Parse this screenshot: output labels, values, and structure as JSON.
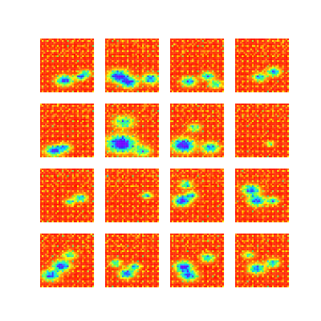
{
  "chart_data": {
    "type": "heatmap",
    "colormap": "rainbow",
    "colormap_stops": [
      "#6a00ff",
      "#2040ff",
      "#00e0ff",
      "#40ff60",
      "#ffff00",
      "#ff8000",
      "#ff0000"
    ],
    "grid": false,
    "axes_visible": false,
    "rows": 4,
    "columns": 4,
    "resolution": 32,
    "panels": [
      {
        "index": 0,
        "texture_seed": 11,
        "blobs": [
          {
            "cx": 0.45,
            "cy": 0.78,
            "r": 0.1,
            "s": 0.9
          },
          {
            "cx": 0.75,
            "cy": 0.72,
            "r": 0.06,
            "s": 0.8
          },
          {
            "cx": 0.85,
            "cy": 0.65,
            "r": 0.07,
            "s": 0.6
          }
        ]
      },
      {
        "index": 1,
        "texture_seed": 23,
        "blobs": [
          {
            "cx": 0.25,
            "cy": 0.7,
            "r": 0.12,
            "s": 1.0
          },
          {
            "cx": 0.45,
            "cy": 0.82,
            "r": 0.1,
            "s": 0.9
          },
          {
            "cx": 0.85,
            "cy": 0.75,
            "r": 0.1,
            "s": 0.8
          }
        ]
      },
      {
        "index": 2,
        "texture_seed": 37,
        "blobs": [
          {
            "cx": 0.35,
            "cy": 0.8,
            "r": 0.09,
            "s": 0.8
          },
          {
            "cx": 0.7,
            "cy": 0.7,
            "r": 0.08,
            "s": 0.7
          },
          {
            "cx": 0.85,
            "cy": 0.85,
            "r": 0.08,
            "s": 0.6
          }
        ]
      },
      {
        "index": 3,
        "texture_seed": 41,
        "blobs": [
          {
            "cx": 0.45,
            "cy": 0.72,
            "r": 0.08,
            "s": 0.7
          },
          {
            "cx": 0.72,
            "cy": 0.62,
            "r": 0.08,
            "s": 0.8
          }
        ]
      },
      {
        "index": 4,
        "texture_seed": 53,
        "blobs": [
          {
            "cx": 0.25,
            "cy": 0.88,
            "r": 0.1,
            "s": 0.9
          },
          {
            "cx": 0.45,
            "cy": 0.82,
            "r": 0.08,
            "s": 0.7
          }
        ]
      },
      {
        "index": 5,
        "texture_seed": 67,
        "blobs": [
          {
            "cx": 0.3,
            "cy": 0.75,
            "r": 0.16,
            "s": 1.2
          },
          {
            "cx": 0.35,
            "cy": 0.35,
            "r": 0.12,
            "s": 0.6
          },
          {
            "cx": 0.7,
            "cy": 0.88,
            "r": 0.1,
            "s": 0.6
          }
        ]
      },
      {
        "index": 6,
        "texture_seed": 79,
        "blobs": [
          {
            "cx": 0.25,
            "cy": 0.78,
            "r": 0.13,
            "s": 1.1
          },
          {
            "cx": 0.75,
            "cy": 0.82,
            "r": 0.1,
            "s": 0.8
          },
          {
            "cx": 0.45,
            "cy": 0.45,
            "r": 0.08,
            "s": 0.5
          }
        ]
      },
      {
        "index": 7,
        "texture_seed": 83,
        "blobs": [
          {
            "cx": 0.65,
            "cy": 0.75,
            "r": 0.05,
            "s": 0.5
          }
        ]
      },
      {
        "index": 8,
        "texture_seed": 97,
        "blobs": [
          {
            "cx": 0.75,
            "cy": 0.55,
            "r": 0.08,
            "s": 0.7
          },
          {
            "cx": 0.55,
            "cy": 0.62,
            "r": 0.06,
            "s": 0.6
          }
        ]
      },
      {
        "index": 9,
        "texture_seed": 101,
        "blobs": [
          {
            "cx": 0.78,
            "cy": 0.5,
            "r": 0.06,
            "s": 0.7
          }
        ]
      },
      {
        "index": 10,
        "texture_seed": 113,
        "blobs": [
          {
            "cx": 0.22,
            "cy": 0.6,
            "r": 0.1,
            "s": 1.0
          },
          {
            "cx": 0.4,
            "cy": 0.5,
            "r": 0.07,
            "s": 0.7
          },
          {
            "cx": 0.3,
            "cy": 0.3,
            "r": 0.08,
            "s": 0.6
          }
        ]
      },
      {
        "index": 11,
        "texture_seed": 127,
        "blobs": [
          {
            "cx": 0.3,
            "cy": 0.4,
            "r": 0.1,
            "s": 0.9
          },
          {
            "cx": 0.4,
            "cy": 0.6,
            "r": 0.1,
            "s": 0.9
          },
          {
            "cx": 0.7,
            "cy": 0.6,
            "r": 0.07,
            "s": 0.7
          }
        ]
      },
      {
        "index": 12,
        "texture_seed": 131,
        "blobs": [
          {
            "cx": 0.4,
            "cy": 0.6,
            "r": 0.1,
            "s": 1.0
          },
          {
            "cx": 0.2,
            "cy": 0.78,
            "r": 0.1,
            "s": 0.9
          },
          {
            "cx": 0.55,
            "cy": 0.4,
            "r": 0.08,
            "s": 0.6
          }
        ]
      },
      {
        "index": 13,
        "texture_seed": 149,
        "blobs": [
          {
            "cx": 0.4,
            "cy": 0.75,
            "r": 0.09,
            "s": 0.9
          },
          {
            "cx": 0.55,
            "cy": 0.62,
            "r": 0.07,
            "s": 0.7
          },
          {
            "cx": 0.2,
            "cy": 0.55,
            "r": 0.07,
            "s": 0.6
          }
        ]
      },
      {
        "index": 14,
        "texture_seed": 157,
        "blobs": [
          {
            "cx": 0.25,
            "cy": 0.62,
            "r": 0.1,
            "s": 1.0
          },
          {
            "cx": 0.35,
            "cy": 0.78,
            "r": 0.1,
            "s": 0.9
          },
          {
            "cx": 0.7,
            "cy": 0.45,
            "r": 0.08,
            "s": 0.7
          }
        ]
      },
      {
        "index": 15,
        "texture_seed": 163,
        "blobs": [
          {
            "cx": 0.4,
            "cy": 0.65,
            "r": 0.1,
            "s": 0.8
          },
          {
            "cx": 0.7,
            "cy": 0.55,
            "r": 0.08,
            "s": 0.7
          },
          {
            "cx": 0.25,
            "cy": 0.4,
            "r": 0.07,
            "s": 0.5
          }
        ]
      }
    ]
  }
}
